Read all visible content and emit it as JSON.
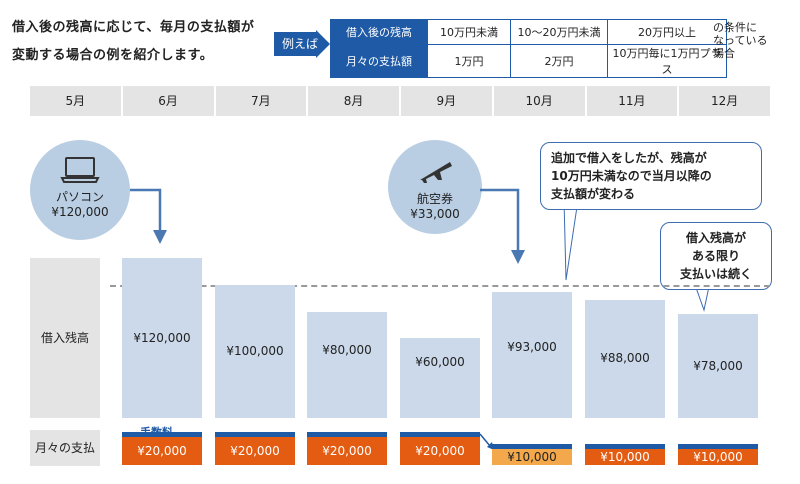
{
  "intro": {
    "line1": "借入後の残高に応じて、毎月の支払額が",
    "line2": "変動する場合の例を紹介します。"
  },
  "example_label": "例えば",
  "rules_table": {
    "balance_header": "借入後の残高",
    "payment_header": "月々の支払額",
    "balance_values": [
      "10万円未満",
      "10～20万円未満",
      "20万円以上"
    ],
    "payment_values": [
      "1万円",
      "2万円",
      "10万円毎に1万円プラス"
    ]
  },
  "condition_note": [
    "の条件に",
    "なっている",
    "場合"
  ],
  "months": [
    "5月",
    "6月",
    "7月",
    "8月",
    "9月",
    "10月",
    "11月",
    "12月"
  ],
  "purchases": [
    {
      "icon": "laptop-icon",
      "label": "パソコン",
      "amount": "¥120,000"
    },
    {
      "icon": "airplane-icon",
      "label": "航空券",
      "amount": "¥33,000"
    }
  ],
  "callouts": {
    "extra_borrow": [
      "追加で借入をしたが、残高が",
      "10万円未満なので当月以降の",
      "支払額が変わる"
    ],
    "continue": [
      "借入残高が",
      "ある限り",
      "支払いは続く"
    ]
  },
  "row_labels": {
    "balance": "借入残高",
    "payment": "月々の支払"
  },
  "fee_label": "手数料",
  "balances": [
    {
      "month": "6月",
      "value": 120000,
      "label": "¥120,000"
    },
    {
      "month": "7月",
      "value": 100000,
      "label": "¥100,000"
    },
    {
      "month": "8月",
      "value": 80000,
      "label": "¥80,000"
    },
    {
      "month": "9月",
      "value": 60000,
      "label": "¥60,000"
    },
    {
      "month": "10月",
      "value": 93000,
      "label": "¥93,000"
    },
    {
      "month": "11月",
      "value": 88000,
      "label": "¥88,000"
    },
    {
      "month": "12月",
      "value": 78000,
      "label": "¥78,000"
    }
  ],
  "payments": [
    {
      "month": "6月",
      "label": "¥20,000"
    },
    {
      "month": "7月",
      "label": "¥20,000"
    },
    {
      "month": "8月",
      "label": "¥20,000"
    },
    {
      "month": "9月",
      "label": "¥20,000"
    },
    {
      "month": "10月",
      "label": "¥10,000"
    },
    {
      "month": "11月",
      "label": "¥10,000"
    },
    {
      "month": "12月",
      "label": "¥10,000"
    }
  ],
  "colors": {
    "accent_blue": "#1f5aa6",
    "payment_orange": "#e35c12",
    "payment_light": "#f2a84b",
    "bar_blue": "#cbd9ea"
  }
}
